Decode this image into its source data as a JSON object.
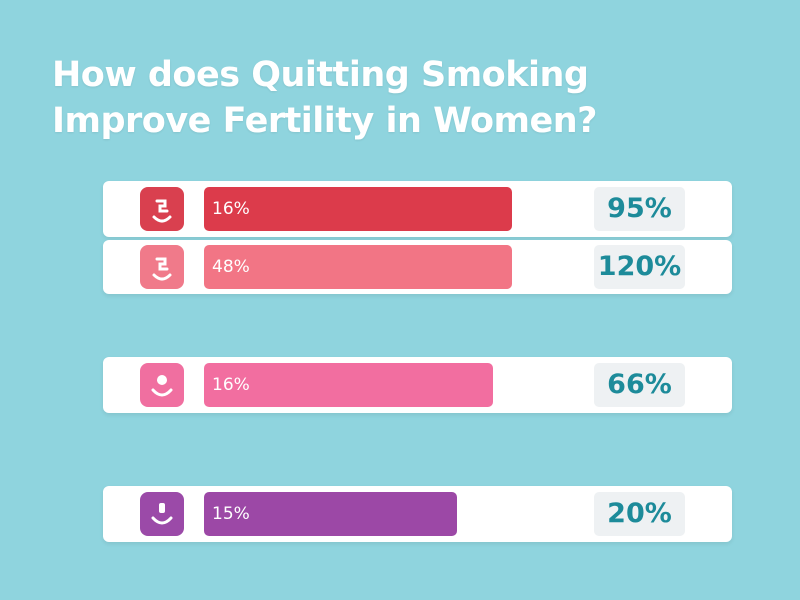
{
  "title": "How does Quitting Smoking Improve Fertility in Women?",
  "rows": [
    {
      "bar_label": "16%",
      "value": "95%"
    },
    {
      "bar_label": "48%",
      "value": "120%"
    },
    {
      "bar_label": "16%",
      "value": "66%"
    },
    {
      "bar_label": "15%",
      "value": "20%"
    }
  ]
}
